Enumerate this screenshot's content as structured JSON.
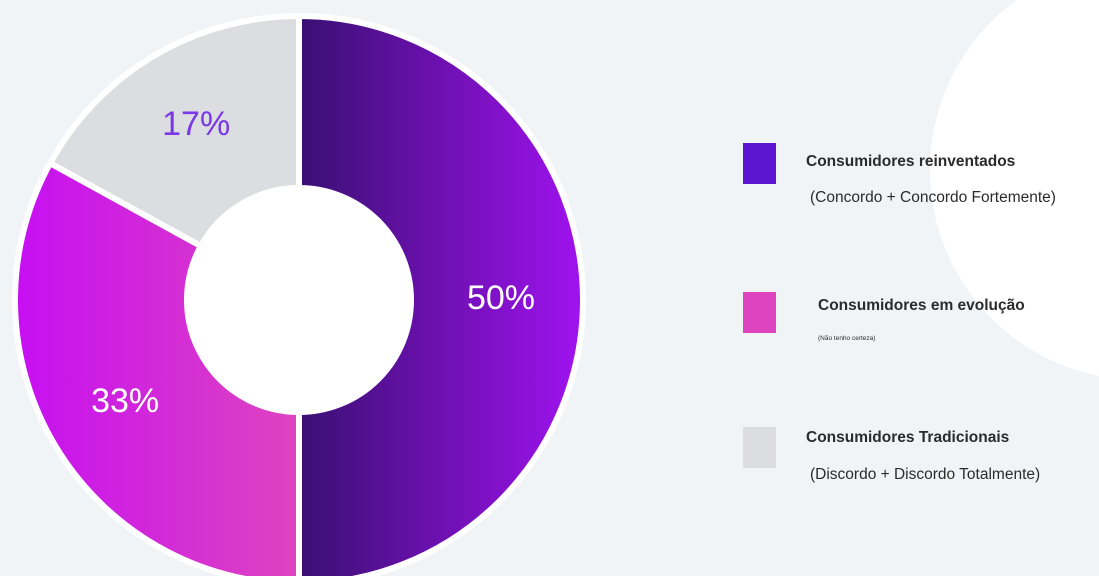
{
  "chart_data": {
    "type": "pie",
    "variant": "donut",
    "slices": [
      {
        "name": "Consumidores reinventados",
        "label": "50%",
        "value": 50,
        "color": "#4a10a0",
        "gradient": [
          "#3a0f72",
          "#a012f0"
        ],
        "label_color": "#ffffff"
      },
      {
        "name": "Consumidores em evolução",
        "label": "33%",
        "value": 33,
        "color": "#c71ef0",
        "gradient": [
          "#c60ff2",
          "#de44bf"
        ],
        "label_color": "#ffffff"
      },
      {
        "name": "Consumidores Tradicionais",
        "label": "17%",
        "value": 17,
        "color": "#dcdde0",
        "gradient": [
          "#dcdde0",
          "#dcdde0"
        ],
        "label_color": "#7a38e6"
      }
    ]
  },
  "legend": {
    "items": [
      {
        "swatch_color": "#5b16cf",
        "title": "Consumidores reinventados",
        "note": "(Concordo + Concordo Fortemente)"
      },
      {
        "swatch_color": "#de44bf",
        "title": "Consumidores em evolução",
        "note": "(Não tenho certeza)"
      },
      {
        "swatch_color": "#dcdde0",
        "title": "Consumidores Tradicionais",
        "note": "(Discordo + Discordo Totalmente)"
      }
    ]
  },
  "colors": {
    "background": "#f1f4f7",
    "slice_gap": "#ffffff",
    "corner_shape": "#ffffff"
  }
}
